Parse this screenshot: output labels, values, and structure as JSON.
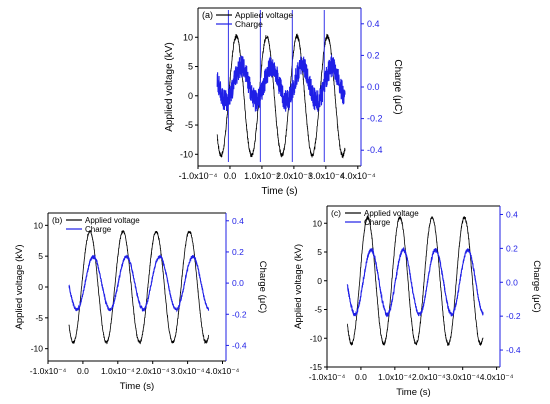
{
  "chart_data": [
    {
      "type": "line",
      "panel_label": "(a)",
      "xlabel": "Time (s)",
      "ylabel_left": "Applied voltage (kV)",
      "ylabel_right": "Charge (μC)",
      "x_ticks": [
        "-1.0x10⁻⁴",
        "0.0",
        "1.0x10⁻⁴",
        "2.0x10⁻⁴",
        "3.0x10⁻⁴",
        "4.0x10⁻⁴"
      ],
      "xlim": [
        -0.0001,
        0.00041
      ],
      "y_left_ticks": [
        "-10",
        "-5",
        "0",
        "5",
        "10"
      ],
      "y_left_range": [
        -12,
        15
      ],
      "y_right_ticks": [
        "-0.4",
        "-0.2",
        "0.0",
        "0.2",
        "0.4"
      ],
      "y_right_range": [
        -0.5,
        0.5
      ],
      "series": [
        {
          "name": "Applied voltage",
          "axis": "left",
          "color": "#000000",
          "t_start": -4e-05,
          "t_end": 0.00036,
          "period": 9.5e-05,
          "amplitude": 10.2,
          "phase_peak": 2e-05,
          "noise": 0.4
        },
        {
          "name": "Charge",
          "axis": "right",
          "color": "#1f1fe6",
          "t_start": -4e-05,
          "t_end": 0.00036,
          "period": 9.5e-05,
          "amplitude": 0.11,
          "offset": 0.02,
          "phase_peak": 3.5e-05,
          "noise": 0.07
        }
      ],
      "spike_times": [
        -5e-06,
        9.5e-05,
        0.000195,
        0.000295
      ]
    },
    {
      "type": "line",
      "panel_label": "(b)",
      "xlabel": "Time (s)",
      "ylabel_left": "Applied voltage (kV)",
      "ylabel_right": "Charge (μC)",
      "x_ticks": [
        "-1.0x10⁻⁴",
        "0.0",
        "1.0x10⁻⁴",
        "2.0x10⁻⁴",
        "3.0x10⁻⁴",
        "4.0x10⁻⁴"
      ],
      "xlim": [
        -0.0001,
        0.00041
      ],
      "y_left_ticks": [
        "-10",
        "-5",
        "0",
        "5",
        "10"
      ],
      "y_left_range": [
        -12,
        12
      ],
      "y_right_ticks": [
        "-0.4",
        "-0.2",
        "0.0",
        "0.2",
        "0.4"
      ],
      "y_right_range": [
        -0.5,
        0.45
      ],
      "series": [
        {
          "name": "Applied voltage",
          "axis": "left",
          "color": "#000000",
          "t_start": -4e-05,
          "t_end": 0.00036,
          "period": 9.5e-05,
          "amplitude": 9.0,
          "phase_peak": 2e-05,
          "noise": 0.25
        },
        {
          "name": "Charge",
          "axis": "right",
          "color": "#1f1fe6",
          "t_start": -4e-05,
          "t_end": 0.00036,
          "period": 9.5e-05,
          "amplitude": 0.17,
          "offset": 0.0,
          "phase_peak": 3e-05,
          "noise": 0.01
        }
      ]
    },
    {
      "type": "line",
      "panel_label": "(c)",
      "xlabel": "Time (s)",
      "ylabel_left": "Applied voltage (kV)",
      "ylabel_right": "Charge (μC)",
      "x_ticks": [
        "-1.0x10⁻⁴",
        "0.0",
        "1.0x10⁻⁴",
        "2.0x10⁻⁴",
        "3.0x10⁻⁴",
        "4.0x10⁻⁴"
      ],
      "xlim": [
        -0.0001,
        0.00041
      ],
      "y_left_ticks": [
        "-15",
        "-10",
        "-5",
        "0",
        "5",
        "10"
      ],
      "y_left_range": [
        -15,
        13
      ],
      "y_right_ticks": [
        "-0.4",
        "-0.2",
        "0.0",
        "0.2",
        "0.4"
      ],
      "y_right_range": [
        -0.5,
        0.45
      ],
      "series": [
        {
          "name": "Applied voltage",
          "axis": "left",
          "color": "#000000",
          "t_start": -4e-05,
          "t_end": 0.00036,
          "period": 9.5e-05,
          "amplitude": 11.0,
          "phase_peak": 2e-05,
          "noise": 0.3
        },
        {
          "name": "Charge",
          "axis": "right",
          "color": "#1f1fe6",
          "t_start": -4e-05,
          "t_end": 0.00036,
          "period": 9.5e-05,
          "amplitude": 0.19,
          "offset": 0.0,
          "phase_peak": 3e-05,
          "noise": 0.012
        }
      ]
    }
  ]
}
